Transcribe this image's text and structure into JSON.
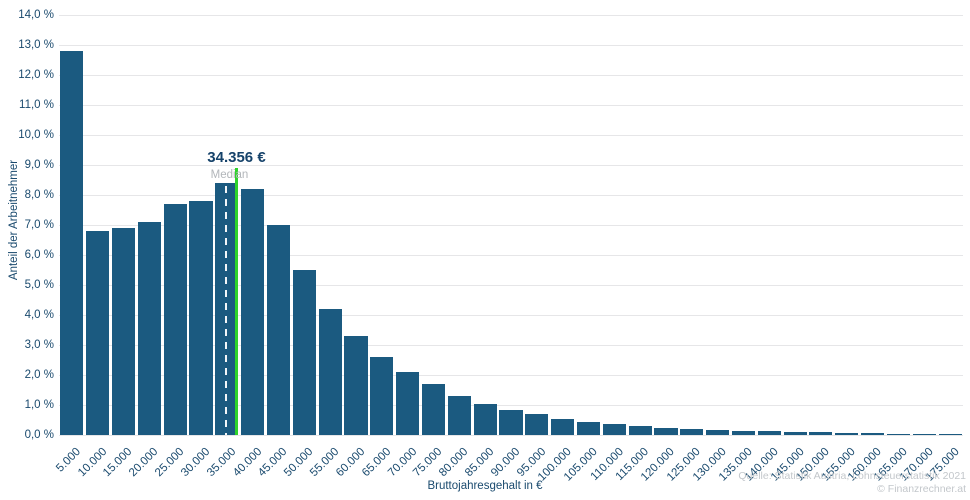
{
  "chart_data": {
    "type": "bar",
    "title": "",
    "xlabel": "Bruttojahresgehalt in €",
    "ylabel": "Anteil der Arbeitnehmer",
    "categories": [
      "5.000",
      "10.000",
      "15.000",
      "20.000",
      "25.000",
      "30.000",
      "35.000",
      "40.000",
      "45.000",
      "50.000",
      "55.000",
      "60.000",
      "65.000",
      "70.000",
      "75.000",
      "80.000",
      "85.000",
      "90.000",
      "95.000",
      "100.000",
      "105.000",
      "110.000",
      "115.000",
      "120.000",
      "125.000",
      "130.000",
      "135.000",
      "140.000",
      "145.000",
      "150.000",
      "155.000",
      "160.000",
      "165.000",
      "170.000",
      "175.000"
    ],
    "values": [
      12.8,
      6.8,
      6.9,
      7.1,
      7.7,
      7.8,
      8.4,
      8.2,
      7.0,
      5.5,
      4.2,
      3.3,
      2.6,
      2.1,
      1.7,
      1.3,
      1.05,
      0.85,
      0.7,
      0.55,
      0.45,
      0.36,
      0.3,
      0.25,
      0.2,
      0.17,
      0.14,
      0.12,
      0.1,
      0.09,
      0.07,
      0.06,
      0.05,
      0.04,
      0.03
    ],
    "ylim": [
      0,
      14
    ],
    "y_ticks": [
      "0,0 %",
      "1,0 %",
      "2,0 %",
      "3,0 %",
      "4,0 %",
      "5,0 %",
      "6,0 %",
      "7,0 %",
      "8,0 %",
      "9,0 %",
      "10,0 %",
      "11,0 %",
      "12,0 %",
      "13,0 %",
      "14,0 %"
    ],
    "grid": true,
    "legend": "none",
    "bin_width": 5000,
    "bar_color": "#1b5a80",
    "median": {
      "value": 34356,
      "label": "34.356 €",
      "sublabel": "Median",
      "line_color": "#2ed32b",
      "dash_line_color": "#ffffff"
    }
  },
  "footer": {
    "source_line": "Quelle: Statistik Austria, Lohnsteuerstatistik 2021",
    "copyright_line": "© Finanzrechner.at"
  },
  "colors": {
    "axis_text": "#1a4a6e",
    "grid": "#e6e6e8",
    "median_label_text": "#15426a",
    "muted_text": "#c3c7cb",
    "background": "#ffffff"
  }
}
